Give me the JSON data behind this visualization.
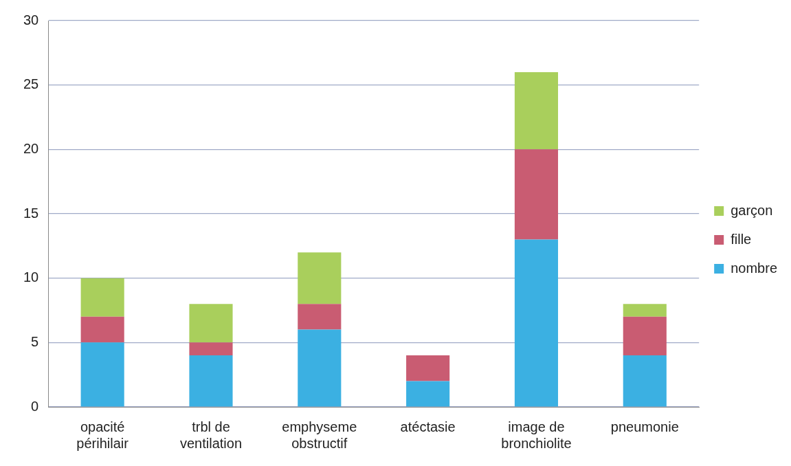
{
  "chart_data": {
    "type": "bar",
    "stacked": true,
    "categories": [
      "opacité périhilair",
      "trbl de ventilation",
      "emphyseme obstructif",
      "atéctasie",
      "image de bronchiolite",
      "pneumonie"
    ],
    "series": [
      {
        "name": "nombre",
        "color": "#3bb0e2",
        "values": [
          5,
          4,
          6,
          2,
          13,
          4
        ]
      },
      {
        "name": "fille",
        "color": "#c95c72",
        "values": [
          2,
          1,
          2,
          2,
          7,
          3
        ]
      },
      {
        "name": "garçon",
        "color": "#a9cf5c",
        "values": [
          3,
          3,
          4,
          0,
          6,
          1
        ]
      }
    ],
    "ylim": [
      0,
      30
    ],
    "yticks": [
      0,
      5,
      10,
      15,
      20,
      25,
      30
    ],
    "grid": "y",
    "legend": "right"
  }
}
